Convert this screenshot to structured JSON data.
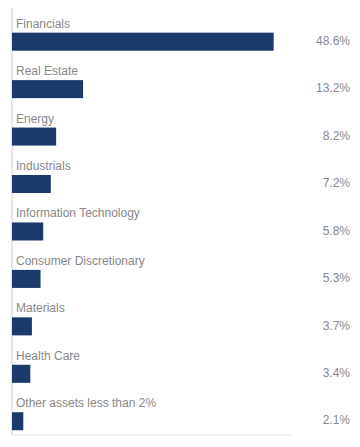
{
  "chart_data": {
    "type": "bar",
    "orientation": "horizontal",
    "categories": [
      "Financials",
      "Real Estate",
      "Energy",
      "Industrials",
      "Information Technology",
      "Consumer Discretionary",
      "Materials",
      "Health Care",
      "Other assets less than 2%"
    ],
    "values": [
      48.6,
      13.2,
      8.2,
      7.2,
      5.8,
      5.3,
      3.7,
      3.4,
      2.1
    ],
    "value_labels": [
      "48.6%",
      "13.2%",
      "8.2%",
      "7.2%",
      "5.8%",
      "5.3%",
      "3.7%",
      "3.4%",
      "2.1%"
    ],
    "color": "#1a3a6b",
    "xlim": [
      0,
      52
    ],
    "grid": false,
    "data_labels": true,
    "tick_labels": false
  }
}
